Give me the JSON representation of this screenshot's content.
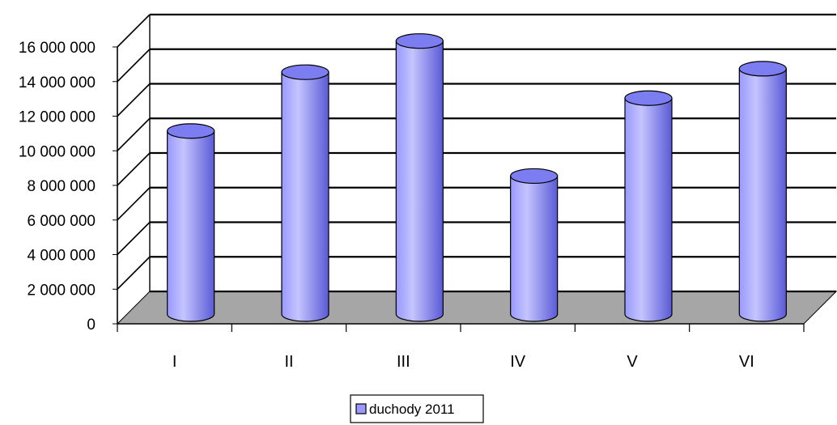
{
  "chart_data": {
    "type": "bar",
    "style": "3d-cylinder",
    "categories": [
      "I",
      "II",
      "III",
      "IV",
      "V",
      "VI"
    ],
    "series": [
      {
        "name": "duchody 2011",
        "values": [
          10300000,
          13700000,
          15500000,
          7700000,
          12200000,
          13900000
        ]
      }
    ],
    "ylim": [
      0,
      16000000
    ],
    "yticks": [
      0,
      2000000,
      4000000,
      6000000,
      8000000,
      10000000,
      12000000,
      14000000,
      16000000
    ],
    "ytick_labels": [
      "0",
      "2 000 000",
      "4 000 000",
      "6 000 000",
      "8 000 000",
      "10 000 000",
      "12 000 000",
      "14 000 000",
      "16 000 000"
    ],
    "grid": true,
    "legend_position": "bottom",
    "colors": {
      "bar": "#9999ff",
      "bar_light": "#c4c4ff",
      "bar_dark": "#5a5ad6",
      "floor": "#a6a6a6"
    }
  }
}
